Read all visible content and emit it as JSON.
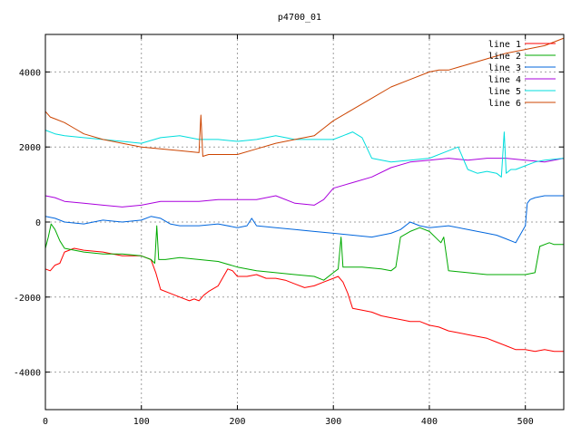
{
  "chart_data": {
    "type": "line",
    "title": "p4700_01",
    "xlabel": "",
    "ylabel": "",
    "xlim": [
      0,
      540
    ],
    "ylim": [
      -5000,
      5000
    ],
    "xticks": [
      0,
      100,
      200,
      300,
      400,
      500
    ],
    "yticks": [
      -4000,
      -2000,
      0,
      2000,
      4000
    ],
    "grid": true,
    "legend_position": "top-right",
    "series": [
      {
        "name": "line 1",
        "color": "#ff0000",
        "x": [
          0,
          5,
          10,
          15,
          20,
          30,
          40,
          60,
          80,
          100,
          110,
          115,
          120,
          130,
          140,
          150,
          155,
          160,
          165,
          170,
          180,
          190,
          195,
          200,
          210,
          220,
          230,
          240,
          250,
          260,
          270,
          280,
          290,
          300,
          305,
          310,
          315,
          320,
          330,
          340,
          350,
          360,
          370,
          380,
          390,
          400,
          410,
          420,
          430,
          440,
          450,
          460,
          470,
          480,
          490,
          500,
          510,
          520,
          530,
          540
        ],
        "y": [
          -1250,
          -1300,
          -1150,
          -1100,
          -800,
          -700,
          -750,
          -800,
          -900,
          -900,
          -1000,
          -1350,
          -1800,
          -1900,
          -2000,
          -2100,
          -2050,
          -2100,
          -1950,
          -1850,
          -1700,
          -1250,
          -1300,
          -1450,
          -1450,
          -1400,
          -1500,
          -1500,
          -1550,
          -1650,
          -1750,
          -1700,
          -1600,
          -1500,
          -1450,
          -1600,
          -1900,
          -2300,
          -2350,
          -2400,
          -2500,
          -2550,
          -2600,
          -2650,
          -2650,
          -2750,
          -2800,
          -2900,
          -2950,
          -3000,
          -3050,
          -3100,
          -3200,
          -3300,
          -3400,
          -3400,
          -3450,
          -3400,
          -3450,
          -3450
        ]
      },
      {
        "name": "line 2",
        "color": "#00aa00",
        "x": [
          0,
          3,
          6,
          10,
          15,
          20,
          40,
          60,
          80,
          100,
          110,
          114,
          116,
          118,
          125,
          140,
          160,
          180,
          200,
          220,
          240,
          260,
          280,
          290,
          300,
          305,
          308,
          310,
          315,
          330,
          350,
          360,
          365,
          370,
          380,
          390,
          400,
          410,
          412,
          415,
          420,
          440,
          460,
          480,
          500,
          510,
          515,
          525,
          530,
          540
        ],
        "y": [
          -700,
          -400,
          -50,
          -200,
          -500,
          -700,
          -800,
          -850,
          -850,
          -900,
          -1000,
          -1100,
          -100,
          -1000,
          -1000,
          -950,
          -1000,
          -1050,
          -1200,
          -1300,
          -1350,
          -1400,
          -1450,
          -1550,
          -1350,
          -1250,
          -400,
          -1200,
          -1200,
          -1200,
          -1250,
          -1300,
          -1200,
          -400,
          -250,
          -150,
          -250,
          -500,
          -550,
          -400,
          -1300,
          -1350,
          -1400,
          -1400,
          -1400,
          -1350,
          -650,
          -550,
          -600,
          -600
        ]
      },
      {
        "name": "line 3",
        "color": "#0066dd",
        "x": [
          0,
          10,
          20,
          40,
          60,
          80,
          100,
          110,
          120,
          130,
          140,
          160,
          180,
          200,
          210,
          215,
          220,
          240,
          260,
          280,
          300,
          320,
          340,
          360,
          370,
          380,
          390,
          400,
          420,
          440,
          460,
          470,
          480,
          490,
          500,
          502,
          505,
          510,
          520,
          530,
          540
        ],
        "y": [
          150,
          100,
          0,
          -50,
          50,
          0,
          50,
          150,
          100,
          -50,
          -100,
          -100,
          -50,
          -150,
          -100,
          100,
          -100,
          -150,
          -200,
          -250,
          -300,
          -350,
          -400,
          -300,
          -200,
          0,
          -100,
          -150,
          -100,
          -200,
          -300,
          -350,
          -450,
          -550,
          -100,
          500,
          600,
          650,
          700,
          700,
          700
        ]
      },
      {
        "name": "line 4",
        "color": "#aa00dd",
        "x": [
          0,
          10,
          20,
          40,
          60,
          80,
          100,
          120,
          140,
          160,
          180,
          200,
          220,
          240,
          260,
          280,
          290,
          300,
          320,
          340,
          360,
          380,
          400,
          420,
          440,
          460,
          480,
          500,
          520,
          540
        ],
        "y": [
          700,
          650,
          550,
          500,
          450,
          400,
          450,
          550,
          550,
          550,
          600,
          600,
          600,
          700,
          500,
          450,
          600,
          900,
          1050,
          1200,
          1450,
          1600,
          1650,
          1700,
          1650,
          1700,
          1700,
          1650,
          1600,
          1700
        ]
      },
      {
        "name": "line 5",
        "color": "#00dddd",
        "x": [
          0,
          10,
          20,
          40,
          60,
          80,
          100,
          120,
          140,
          160,
          180,
          200,
          220,
          240,
          260,
          280,
          300,
          310,
          320,
          330,
          340,
          360,
          380,
          400,
          420,
          430,
          440,
          450,
          460,
          470,
          475,
          478,
          480,
          485,
          490,
          500,
          510,
          520,
          540
        ],
        "y": [
          2450,
          2350,
          2300,
          2250,
          2200,
          2150,
          2100,
          2250,
          2300,
          2200,
          2200,
          2150,
          2200,
          2300,
          2200,
          2200,
          2200,
          2300,
          2400,
          2250,
          1700,
          1600,
          1650,
          1700,
          1900,
          2000,
          1400,
          1300,
          1350,
          1300,
          1200,
          2400,
          1300,
          1400,
          1400,
          1500,
          1600,
          1650,
          1700
        ]
      },
      {
        "name": "line 6",
        "color": "#cc4400",
        "x": [
          0,
          5,
          10,
          20,
          30,
          40,
          60,
          80,
          100,
          120,
          140,
          160,
          162,
          164,
          170,
          180,
          200,
          220,
          240,
          260,
          280,
          290,
          300,
          320,
          340,
          360,
          380,
          400,
          410,
          420,
          440,
          460,
          480,
          500,
          520,
          540
        ],
        "y": [
          2950,
          2800,
          2750,
          2650,
          2500,
          2350,
          2200,
          2100,
          2000,
          1950,
          1900,
          1850,
          2850,
          1750,
          1800,
          1800,
          1800,
          1950,
          2100,
          2200,
          2300,
          2500,
          2700,
          3000,
          3300,
          3600,
          3800,
          4000,
          4050,
          4050,
          4200,
          4350,
          4500,
          4600,
          4700,
          4900
        ]
      }
    ]
  }
}
